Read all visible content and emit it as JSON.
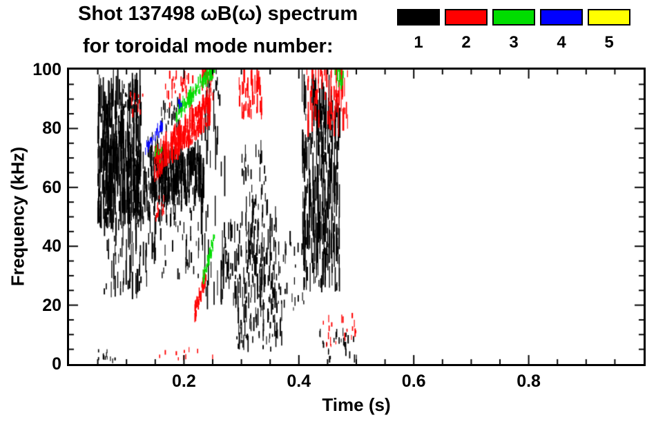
{
  "header": {
    "title_line1": "Shot 137498 ωB(ω) spectrum",
    "title_line2": "for toroidal mode number:"
  },
  "chart_data": {
    "type": "scatter",
    "title": "Shot 137498 ωB(ω) spectrum for toroidal mode number: 1 2 3 4 5",
    "xlabel": "Time (s)",
    "ylabel": "Frequency (kHz)",
    "xlim": [
      0,
      1.0
    ],
    "ylim": [
      0,
      100
    ],
    "grid": false,
    "legend_position": "top-right",
    "x_ticks": {
      "major": [
        0.2,
        0.4,
        0.6,
        0.8
      ],
      "labels": [
        "0.2",
        "0.4",
        "0.6",
        "0.8"
      ],
      "minor_step": 0.05
    },
    "y_ticks": {
      "major": [
        0,
        20,
        40,
        60,
        80,
        100
      ],
      "labels": [
        "0",
        "20",
        "40",
        "60",
        "80",
        "100"
      ],
      "minor_step": 5
    },
    "series": [
      {
        "name": "toroidal mode n=1",
        "label": "1",
        "color": "#000000",
        "clusters": [
          {
            "t": [
              0.049,
              0.125
            ],
            "f": [
              45,
              90
            ],
            "n": 340,
            "streak": [
              2,
              14
            ]
          },
          {
            "t": [
              0.06,
              0.15
            ],
            "f": [
              22,
              55
            ],
            "n": 90,
            "streak": [
              2,
              10
            ]
          },
          {
            "t": [
              0.1,
              0.175
            ],
            "f": [
              48,
              72
            ],
            "n": 100,
            "streak": [
              2,
              8
            ]
          },
          {
            "t": [
              0.14,
              0.235
            ],
            "f": [
              54,
              70
            ],
            "n": 220,
            "streak": [
              2,
              9
            ]
          },
          {
            "t": [
              0.155,
              0.23
            ],
            "f": [
              28,
              54
            ],
            "n": 50,
            "streak": [
              1,
              7
            ]
          },
          {
            "t": [
              0.225,
              0.27
            ],
            "f": [
              18,
              88
            ],
            "n": 35,
            "streak": [
              3,
              18
            ]
          },
          {
            "t": [
              0.265,
              0.36
            ],
            "f": [
              22,
              48
            ],
            "n": 140,
            "streak": [
              1,
              8
            ]
          },
          {
            "t": [
              0.285,
              0.37
            ],
            "f": [
              4,
              24
            ],
            "n": 90,
            "streak": [
              1,
              7
            ]
          },
          {
            "t": [
              0.405,
              0.47
            ],
            "f": [
              24,
              90
            ],
            "n": 300,
            "streak": [
              2,
              12
            ]
          },
          {
            "t": [
              0.43,
              0.5
            ],
            "f": [
              0,
              10
            ],
            "n": 25,
            "streak": [
              1,
              3
            ]
          },
          {
            "t": [
              0.235,
              0.26
            ],
            "f": [
              88,
              100
            ],
            "n": 22,
            "streak": [
              1,
              5
            ]
          },
          {
            "t": [
              0.09,
              0.12
            ],
            "f": [
              84,
              95
            ],
            "n": 18,
            "streak": [
              1,
              4
            ]
          },
          {
            "t": [
              0.16,
              0.19
            ],
            "f": [
              78,
              88
            ],
            "n": 25,
            "streak": [
              1,
              4
            ]
          },
          {
            "t": [
              0.05,
              0.08
            ],
            "f": [
              0,
              4
            ],
            "n": 12,
            "streak": [
              1,
              2
            ]
          },
          {
            "t": [
              0.3,
              0.345
            ],
            "f": [
              48,
              72
            ],
            "n": 40,
            "streak": [
              1,
              6
            ]
          },
          {
            "t": [
              0.36,
              0.41
            ],
            "f": [
              18,
              45
            ],
            "n": 30,
            "streak": [
              1,
              5
            ]
          }
        ]
      },
      {
        "name": "toroidal mode n=2",
        "label": "2",
        "color": "#ff0000",
        "clusters": [
          {
            "t": [
              0.148,
              0.245
            ],
            "f": [
              66,
              85
            ],
            "n": 260,
            "shape": "diag",
            "spread": 9,
            "streak": [
              1,
              6
            ]
          },
          {
            "t": [
              0.165,
              0.215
            ],
            "f": [
              85,
              97
            ],
            "n": 35,
            "streak": [
              1,
              4
            ]
          },
          {
            "t": [
              0.23,
              0.25
            ],
            "f": [
              86,
              100
            ],
            "n": 30,
            "streak": [
              2,
              6
            ]
          },
          {
            "t": [
              0.295,
              0.335
            ],
            "f": [
              83,
              96
            ],
            "n": 45,
            "streak": [
              2,
              7
            ]
          },
          {
            "t": [
              0.41,
              0.485
            ],
            "f": [
              77,
              100
            ],
            "n": 80,
            "streak": [
              2,
              9
            ]
          },
          {
            "t": [
              0.218,
              0.237
            ],
            "f": [
              16,
              29
            ],
            "n": 45,
            "shape": "diag",
            "spread": 5,
            "streak": [
              1,
              4
            ]
          },
          {
            "t": [
              0.44,
              0.5
            ],
            "f": [
              3,
              16
            ],
            "n": 20,
            "streak": [
              1,
              3
            ]
          },
          {
            "t": [
              0.15,
              0.165
            ],
            "f": [
              47,
              56
            ],
            "n": 12,
            "streak": [
              1,
              3
            ]
          },
          {
            "t": [
              0.155,
              0.25
            ],
            "f": [
              0,
              4
            ],
            "n": 10,
            "streak": [
              1,
              2
            ]
          },
          {
            "t": [
              0.1,
              0.13
            ],
            "f": [
              83,
              92
            ],
            "n": 10,
            "streak": [
              1,
              3
            ]
          }
        ]
      },
      {
        "name": "toroidal mode n=3",
        "label": "3",
        "color": "#00dd00",
        "clusters": [
          {
            "t": [
              0.185,
              0.258
            ],
            "f": [
              83,
              101
            ],
            "n": 110,
            "shape": "diag",
            "spread": 4,
            "streak": [
              1,
              4
            ]
          },
          {
            "t": [
              0.232,
              0.252
            ],
            "f": [
              28,
              42
            ],
            "n": 30,
            "shape": "diag",
            "spread": 4,
            "streak": [
              1,
              3
            ]
          },
          {
            "t": [
              0.462,
              0.477
            ],
            "f": [
              93,
              100
            ],
            "n": 12,
            "streak": [
              1,
              4
            ]
          },
          {
            "t": [
              0.148,
              0.162
            ],
            "f": [
              67,
              74
            ],
            "n": 8,
            "streak": [
              1,
              3
            ]
          }
        ]
      },
      {
        "name": "toroidal mode n=4",
        "label": "4",
        "color": "#0000ff",
        "clusters": [
          {
            "t": [
              0.132,
              0.163
            ],
            "f": [
              72,
              80
            ],
            "n": 28,
            "shape": "diag",
            "spread": 3,
            "streak": [
              1,
              3
            ]
          },
          {
            "t": [
              0.188,
              0.196
            ],
            "f": [
              86,
              90
            ],
            "n": 6,
            "streak": [
              1,
              2
            ]
          }
        ]
      },
      {
        "name": "toroidal mode n=5",
        "label": "5",
        "color": "#ffff00",
        "clusters": []
      }
    ]
  }
}
